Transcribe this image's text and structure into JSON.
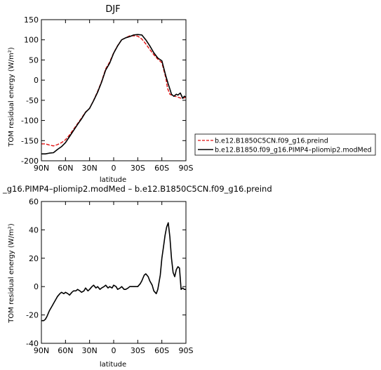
{
  "chart_data": [
    {
      "type": "line",
      "title": "DJF",
      "xlabel": "latitude",
      "ylabel": "TOM residual energy (W/m²)",
      "x_tick_labels": [
        "90N",
        "60N",
        "30N",
        "0",
        "30S",
        "60S",
        "90S"
      ],
      "x_tick_values": [
        90,
        60,
        30,
        0,
        -30,
        -60,
        -90
      ],
      "xlim": [
        90,
        -90
      ],
      "ylim": [
        -200,
        150
      ],
      "y_ticks": [
        150,
        100,
        50,
        0,
        -50,
        -100,
        -150,
        -200
      ],
      "legend_position": "outside-right",
      "series": [
        {
          "name": "b.e12.B1850C5CN.f09_g16.preind",
          "color": "#e01010",
          "dash": "dashed",
          "x": [
            90,
            85,
            80,
            75,
            70,
            65,
            60,
            55,
            50,
            45,
            40,
            35,
            30,
            25,
            20,
            15,
            10,
            5,
            0,
            -5,
            -10,
            -15,
            -20,
            -25,
            -30,
            -35,
            -40,
            -45,
            -50,
            -55,
            -60,
            -65,
            -67,
            -70,
            -73,
            -76,
            -80,
            -84,
            -88,
            -90
          ],
          "y": [
            -158,
            -158,
            -161,
            -163,
            -160,
            -155,
            -148,
            -136,
            -122,
            -108,
            -94,
            -79,
            -70,
            -50,
            -28,
            -3,
            28,
            45,
            68,
            86,
            100,
            105,
            110,
            110,
            109,
            102,
            90,
            76,
            63,
            52,
            43,
            5,
            -20,
            -35,
            -38,
            -40,
            -42,
            -45,
            -44,
            -42
          ]
        },
        {
          "name": "b.e12.B1850.f09_g16.PIMP4–pliomip2.modMed",
          "color": "#000000",
          "dash": "solid",
          "x": [
            90,
            85,
            80,
            75,
            70,
            65,
            60,
            55,
            50,
            45,
            40,
            35,
            30,
            25,
            20,
            15,
            10,
            5,
            0,
            -5,
            -10,
            -15,
            -20,
            -25,
            -30,
            -35,
            -40,
            -45,
            -50,
            -55,
            -60,
            -65,
            -68,
            -70,
            -72,
            -75,
            -78,
            -80,
            -83,
            -86,
            -88,
            -90
          ],
          "y": [
            -183,
            -183,
            -181,
            -180,
            -172,
            -165,
            -155,
            -140,
            -125,
            -110,
            -96,
            -80,
            -70,
            -51,
            -30,
            -5,
            25,
            42,
            67,
            85,
            100,
            105,
            108,
            112,
            113,
            112,
            100,
            85,
            68,
            55,
            48,
            10,
            -10,
            -22,
            -35,
            -40,
            -35,
            -37,
            -32,
            -45,
            -40,
            -42
          ]
        }
      ]
    },
    {
      "type": "line",
      "title": "_g16.PIMP4–pliomip2.modMed – b.e12.B1850C5CN.f09_g16.preind",
      "xlabel": "latitude",
      "ylabel": "TOM residual energy (W/m²)",
      "x_tick_labels": [
        "90N",
        "60N",
        "30N",
        "0",
        "30S",
        "60S",
        "90S"
      ],
      "x_tick_values": [
        90,
        60,
        30,
        0,
        -30,
        -60,
        -90
      ],
      "xlim": [
        90,
        -90
      ],
      "ylim": [
        -40,
        60
      ],
      "y_ticks": [
        60,
        40,
        20,
        0,
        -20,
        -40
      ],
      "series": [
        {
          "name": "",
          "color": "#000000",
          "dash": "solid",
          "x": [
            90,
            87,
            85,
            83,
            80,
            77,
            75,
            72,
            70,
            67,
            65,
            62,
            60,
            57,
            55,
            52,
            50,
            47,
            45,
            42,
            40,
            37,
            35,
            32,
            30,
            27,
            25,
            22,
            20,
            17,
            15,
            12,
            10,
            7,
            5,
            2,
            0,
            -3,
            -5,
            -8,
            -10,
            -13,
            -15,
            -18,
            -20,
            -23,
            -25,
            -28,
            -30,
            -33,
            -35,
            -38,
            -40,
            -43,
            -45,
            -48,
            -50,
            -53,
            -55,
            -58,
            -60,
            -62,
            -64,
            -66,
            -68,
            -70,
            -72,
            -74,
            -76,
            -78,
            -80,
            -82,
            -84,
            -86,
            -88,
            -90
          ],
          "y": [
            -24,
            -24,
            -23,
            -21,
            -17,
            -14,
            -12,
            -9,
            -7,
            -5,
            -4,
            -5,
            -4,
            -5,
            -6,
            -4,
            -3,
            -3,
            -2,
            -3,
            -4,
            -3,
            -1,
            -3,
            -2,
            0,
            1,
            -1,
            0,
            -2,
            -1,
            0,
            1,
            -1,
            0,
            -1,
            1,
            0,
            -2,
            -1,
            0,
            -2,
            -2,
            -1,
            0,
            0,
            0,
            0,
            0,
            2,
            4,
            8,
            9,
            7,
            4,
            1,
            -3,
            -5,
            -2,
            8,
            20,
            28,
            36,
            42,
            45,
            35,
            20,
            10,
            7,
            12,
            14,
            13,
            -2,
            -1,
            -2,
            -2
          ]
        }
      ]
    }
  ]
}
